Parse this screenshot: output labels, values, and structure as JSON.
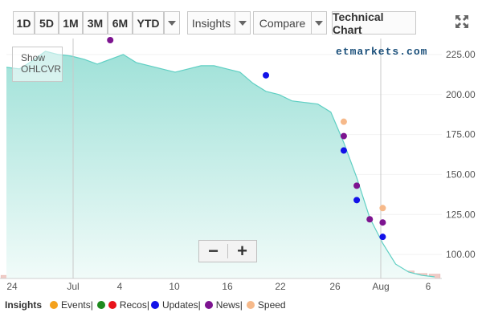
{
  "toolbar": {
    "ranges": [
      "1D",
      "5D",
      "1M",
      "3M",
      "6M",
      "YTD"
    ],
    "insights_label": "Insights",
    "compare_label": "Compare",
    "technical_label": "Technical Chart"
  },
  "brand": "etmarkets.com",
  "ohlc_label": "Show OHLCVR",
  "zoom": {
    "minus": "−",
    "plus": "+"
  },
  "legend": {
    "title": "Insights",
    "items": [
      {
        "label": "Events|",
        "color": "#f4a11d"
      },
      {
        "label": "Recos|",
        "color": "#1e8a1e"
      },
      {
        "label": "",
        "color": "#e8131b"
      },
      {
        "label": "Updates|",
        "color": "#1212e8"
      },
      {
        "label": "News|",
        "color": "#7d1490"
      },
      {
        "label": "Speed",
        "color": "#f6b98a"
      }
    ]
  },
  "colors": {
    "line": "#5fcfc3",
    "area_top": "#9fe1d8",
    "area_bottom": "#f1fbf9",
    "volume_red": "#f0cbc6",
    "volume_green": "#d3ecd7"
  },
  "chart_data": {
    "type": "area",
    "x_tick_labels": [
      "24",
      "Jul",
      "4",
      "10",
      "16",
      "22",
      "26",
      "Aug",
      "6"
    ],
    "y_tick_labels": [
      "225.00",
      "200.00",
      "175.00",
      "150.00",
      "125.00",
      "100.00"
    ],
    "ylim": [
      85,
      235
    ],
    "price": [
      217,
      216,
      221,
      227,
      225,
      224,
      222,
      219,
      222,
      225,
      220,
      218,
      216,
      214,
      216,
      218,
      218,
      216,
      214,
      207,
      202,
      200,
      196,
      195,
      194,
      189,
      170,
      148,
      123,
      107,
      94,
      89,
      87,
      86
    ],
    "volume": [
      {
        "v": 0.05,
        "c": "red"
      },
      {
        "v": 0.05,
        "c": "red"
      },
      {
        "v": 0.05,
        "c": "red"
      },
      {
        "v": 0.2,
        "c": "green"
      },
      {
        "v": 1.0,
        "c": "green"
      },
      {
        "v": 0.18,
        "c": "red"
      },
      {
        "v": 0.05,
        "c": "red"
      },
      {
        "v": 0.05,
        "c": "red"
      },
      {
        "v": 0.08,
        "c": "green"
      },
      {
        "v": 0.07,
        "c": "green"
      },
      {
        "v": 0.1,
        "c": "red"
      },
      {
        "v": 0.13,
        "c": "green"
      },
      {
        "v": 0.08,
        "c": "red"
      },
      {
        "v": 0.1,
        "c": "red"
      },
      {
        "v": 0.06,
        "c": "red"
      },
      {
        "v": 0.3,
        "c": "red"
      },
      {
        "v": 0.06,
        "c": "red"
      },
      {
        "v": 0.05,
        "c": "red"
      },
      {
        "v": 0.06,
        "c": "green"
      },
      {
        "v": 0.05,
        "c": "red"
      },
      {
        "v": 0.05,
        "c": "red"
      },
      {
        "v": 0.22,
        "c": "red"
      },
      {
        "v": 0.12,
        "c": "red"
      },
      {
        "v": 0.1,
        "c": "green"
      },
      {
        "v": 0.06,
        "c": "red"
      },
      {
        "v": 0.05,
        "c": "red"
      },
      {
        "v": 0.05,
        "c": "red"
      },
      {
        "v": 0.07,
        "c": "red"
      },
      {
        "v": 0.09,
        "c": "red"
      },
      {
        "v": 0.1,
        "c": "red"
      },
      {
        "v": 0.1,
        "c": "red"
      },
      {
        "v": 0.12,
        "c": "red"
      },
      {
        "v": 0.08,
        "c": "red"
      },
      {
        "v": 0.07,
        "c": "red"
      }
    ],
    "events": [
      {
        "i": 8,
        "price": 234,
        "kind": "news"
      },
      {
        "i": 20,
        "price": 212,
        "kind": "updates"
      },
      {
        "i": 26,
        "price": 183,
        "kind": "speed"
      },
      {
        "i": 26,
        "price": 174,
        "kind": "news"
      },
      {
        "i": 26,
        "price": 165,
        "kind": "updates"
      },
      {
        "i": 27,
        "price": 143,
        "kind": "news"
      },
      {
        "i": 27,
        "price": 134,
        "kind": "updates"
      },
      {
        "i": 28,
        "price": 122,
        "kind": "news"
      },
      {
        "i": 29,
        "price": 129,
        "kind": "speed"
      },
      {
        "i": 29,
        "price": 120,
        "kind": "news"
      },
      {
        "i": 29,
        "price": 111,
        "kind": "updates"
      }
    ]
  }
}
